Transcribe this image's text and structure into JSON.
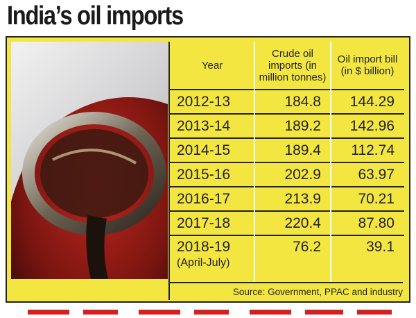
{
  "header": {
    "title": "India’s oil imports"
  },
  "table": {
    "columns": [
      "Year",
      "Crude oil imports (in million tonnes)",
      "Oil import bill (in $ billion)"
    ],
    "rows": [
      {
        "year": "2012-13",
        "crude": "184.8",
        "bill": "144.29"
      },
      {
        "year": "2013-14",
        "crude": "189.2",
        "bill": "142.96"
      },
      {
        "year": "2014-15",
        "crude": "189.4",
        "bill": "112.74"
      },
      {
        "year": "2015-16",
        "crude": "202.9",
        "bill": "63.97"
      },
      {
        "year": "2016-17",
        "crude": "213.9",
        "bill": "70.21"
      },
      {
        "year": "2017-18",
        "crude": "220.4",
        "bill": "87.80"
      },
      {
        "year": "2018-19",
        "period": "(April-July)",
        "crude": "76.2",
        "bill": "39.1"
      }
    ],
    "source": "Source: Government, PPAC and industry"
  }
}
